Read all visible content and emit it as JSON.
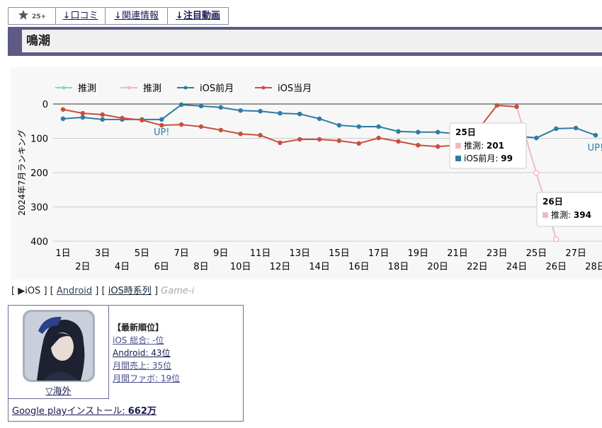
{
  "tabs": [
    "25+",
    "↓口コミ",
    "↓関連情報",
    "↓注目動画"
  ],
  "header": {
    "title": "鳴潮"
  },
  "chart_data": {
    "type": "line",
    "ylabel": "2024年7月ランキング",
    "categories": [
      "1日",
      "2日",
      "3日",
      "4日",
      "5日",
      "6日",
      "7日",
      "8日",
      "9日",
      "10日",
      "11日",
      "12日",
      "13日",
      "14日",
      "15日",
      "16日",
      "17日",
      "18日",
      "19日",
      "20日",
      "21日",
      "22日",
      "23日",
      "24日",
      "25日",
      "26日",
      "27日",
      "28日"
    ],
    "series": [
      {
        "name": "推測",
        "color": "#8ccfd6",
        "values": [
          null,
          null,
          null,
          null,
          null,
          null,
          null,
          null,
          null,
          null,
          null,
          null,
          null,
          null,
          null,
          null,
          null,
          null,
          null,
          null,
          null,
          null,
          null,
          null,
          null,
          null,
          null,
          null
        ]
      },
      {
        "name": "推測",
        "color": "#f2b8c8",
        "values": [
          null,
          null,
          null,
          null,
          null,
          null,
          null,
          null,
          null,
          null,
          null,
          null,
          null,
          null,
          null,
          null,
          null,
          null,
          null,
          null,
          null,
          null,
          null,
          8,
          201,
          394,
          null,
          null
        ]
      },
      {
        "name": "iOS前月",
        "color": "#2e7ca3",
        "values": [
          43,
          39,
          45,
          45,
          45,
          45,
          2,
          6,
          10,
          19,
          21,
          27,
          29,
          43,
          62,
          66,
          66,
          80,
          82,
          82,
          87,
          88,
          90,
          93,
          99,
          72,
          70,
          91
        ]
      },
      {
        "name": "iOS当月",
        "color": "#c9503e",
        "values": [
          16,
          27,
          31,
          41,
          47,
          62,
          60,
          66,
          76,
          87,
          91,
          113,
          103,
          103,
          107,
          115,
          99,
          109,
          120,
          124,
          120,
          78,
          4,
          8,
          null,
          null,
          null,
          null
        ]
      }
    ],
    "ylim": [
      0,
      400
    ],
    "inverted": true,
    "yticks": [
      0,
      100,
      200,
      300,
      400
    ],
    "grid": true,
    "legend": "top-left",
    "annotations": [
      {
        "text": "UP!"
      },
      {
        "text": "UP!"
      }
    ]
  },
  "links": [
    "[",
    "▶iOS",
    "] [",
    "Android",
    "] [",
    "iOS時系列",
    "]",
    "Game-i"
  ],
  "card": {
    "region": "▽海外",
    "heading": "【最新順位】",
    "rows": [
      "iOS 総合: -位",
      "Android: 43位",
      "月間売上: 35位",
      "月間ファボ: 19位"
    ],
    "installs_label": "Google playインストール:",
    "installs": "662万"
  }
}
